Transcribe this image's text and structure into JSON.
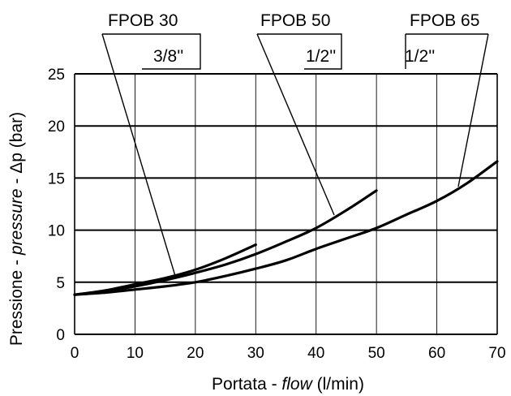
{
  "chart_data": {
    "type": "line",
    "xlabel_parts": [
      "Portata - ",
      "flow",
      " (l/min)"
    ],
    "ylabel_parts": [
      "Pressione - ",
      "pressure",
      " - Δp (bar)"
    ],
    "xlim": [
      0,
      70
    ],
    "ylim": [
      0,
      25
    ],
    "xticks": [
      0,
      10,
      20,
      30,
      40,
      50,
      60,
      70
    ],
    "yticks": [
      0,
      5,
      10,
      15,
      20,
      25
    ],
    "grid": true,
    "series": [
      {
        "name": "FPOB 30",
        "size": "3/8''",
        "points": [
          [
            0,
            3.8
          ],
          [
            5,
            4.2
          ],
          [
            10,
            4.8
          ],
          [
            15,
            5.4
          ],
          [
            20,
            6.2
          ],
          [
            25,
            7.3
          ],
          [
            30,
            8.6
          ]
        ]
      },
      {
        "name": "FPOB 50",
        "size": "1/2''",
        "points": [
          [
            0,
            3.8
          ],
          [
            5,
            4.15
          ],
          [
            10,
            4.6
          ],
          [
            15,
            5.2
          ],
          [
            20,
            5.9
          ],
          [
            25,
            6.7
          ],
          [
            30,
            7.7
          ],
          [
            35,
            8.9
          ],
          [
            40,
            10.2
          ],
          [
            45,
            11.9
          ],
          [
            50,
            13.8
          ]
        ]
      },
      {
        "name": "FPOB 65",
        "size": "1/2''",
        "points": [
          [
            0,
            3.8
          ],
          [
            5,
            4.0
          ],
          [
            10,
            4.3
          ],
          [
            15,
            4.6
          ],
          [
            20,
            5.0
          ],
          [
            25,
            5.6
          ],
          [
            30,
            6.3
          ],
          [
            35,
            7.1
          ],
          [
            40,
            8.2
          ],
          [
            45,
            9.2
          ],
          [
            50,
            10.2
          ],
          [
            55,
            11.5
          ],
          [
            60,
            12.8
          ],
          [
            65,
            14.5
          ],
          [
            70,
            16.6
          ]
        ]
      }
    ]
  }
}
